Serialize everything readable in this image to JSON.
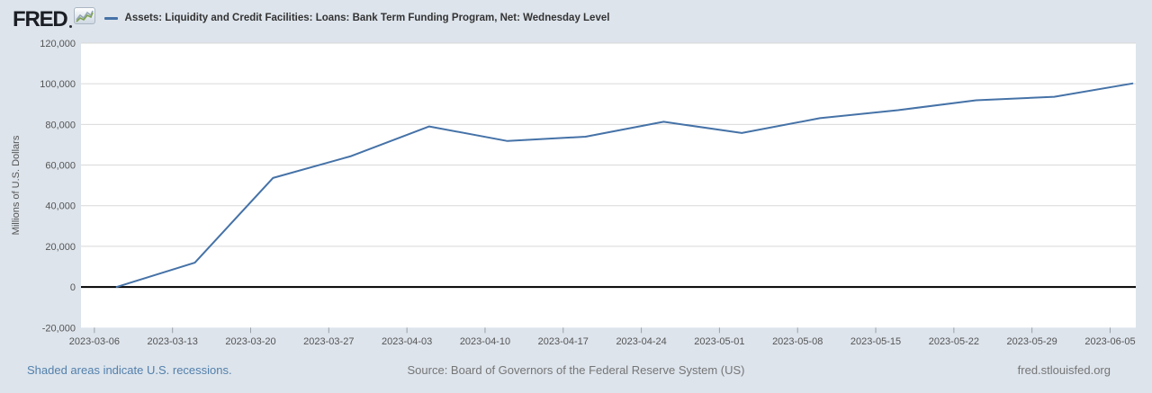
{
  "header": {
    "logo_text": "FRED",
    "title": "Assets: Liquidity and Credit Facilities: Loans: Bank Term Funding Program, Net: Wednesday Level"
  },
  "footer": {
    "recession_note": "Shaded areas indicate U.S. recessions.",
    "source": "Source: Board of Governors of the Federal Reserve System (US)",
    "site": "fred.stlouisfed.org"
  },
  "colors": {
    "background": "#dde4ec",
    "plot_background": "#ffffff",
    "series_line": "#4572a7",
    "zero_line": "#000000",
    "gridline": "#d9d9d9",
    "tick_mark": "#9aa0a6",
    "axis_text": "#555555",
    "title_text": "#333333",
    "link_text": "#5380ab",
    "footer_text": "#757575"
  },
  "icons": {
    "logo_chart_icon": "sparkline-chart-icon",
    "legend_icon": "series-line-swatch"
  },
  "chart_data": {
    "type": "line",
    "title": "Assets: Liquidity and Credit Facilities: Loans: Bank Term Funding Program, Net: Wednesday Level",
    "xlabel": "",
    "ylabel": "Millions of U.S. Dollars",
    "grid": "horizontal",
    "legend_position": "top-header",
    "y_range": [
      -20000,
      120000
    ],
    "y_ticks": [
      {
        "value": 120000,
        "label": "120,000"
      },
      {
        "value": 100000,
        "label": "100,000"
      },
      {
        "value": 80000,
        "label": "80,000"
      },
      {
        "value": 60000,
        "label": "60,000"
      },
      {
        "value": 40000,
        "label": "40,000"
      },
      {
        "value": 20000,
        "label": "20,000"
      },
      {
        "value": 0,
        "label": "0"
      },
      {
        "value": -20000,
        "label": "-20,000"
      }
    ],
    "x_tick_labels": [
      "2023-03-06",
      "2023-03-13",
      "2023-03-20",
      "2023-03-27",
      "2023-04-03",
      "2023-04-10",
      "2023-04-17",
      "2023-04-24",
      "2023-05-01",
      "2023-05-08",
      "2023-05-15",
      "2023-05-22",
      "2023-05-29",
      "2023-06-05"
    ],
    "x_visible_range": [
      "2023-03-05",
      "2023-06-07"
    ],
    "series": [
      {
        "name": "Assets: Liquidity and Credit Facilities: Loans: Bank Term Funding Program, Net: Wednesday Level",
        "color": "#4572a7",
        "frequency": "weekly-wednesday",
        "units": "Millions of U.S. Dollars",
        "points": [
          [
            "2023-03-08",
            0
          ],
          [
            "2023-03-15",
            11943
          ],
          [
            "2023-03-22",
            53669
          ],
          [
            "2023-03-29",
            64403
          ],
          [
            "2023-04-05",
            79021
          ],
          [
            "2023-04-12",
            71837
          ],
          [
            "2023-04-19",
            73982
          ],
          [
            "2023-04-26",
            81327
          ],
          [
            "2023-05-03",
            75778
          ],
          [
            "2023-05-10",
            83101
          ],
          [
            "2023-05-17",
            87006
          ],
          [
            "2023-05-24",
            91907
          ],
          [
            "2023-05-31",
            93615
          ],
          [
            "2023-06-07",
            100161
          ]
        ]
      }
    ]
  }
}
